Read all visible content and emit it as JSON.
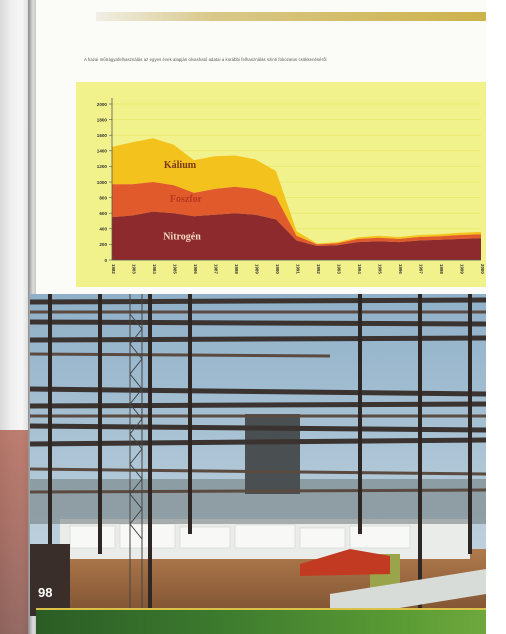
{
  "page": {
    "number": "98"
  },
  "caption": "A hazai műtrágyafelhasználás az egyes évek alapján olvasható adatai a korábbi felhasználás szinti fokozatos csökkenéséről",
  "chart_data": {
    "type": "area",
    "stacked": true,
    "title": "",
    "xlabel": "",
    "ylabel": "",
    "ylim": [
      0,
      2000
    ],
    "yticks": [
      0,
      200,
      400,
      600,
      800,
      1000,
      1200,
      1400,
      1600,
      1800,
      2000
    ],
    "grid": true,
    "x": [
      "1982",
      "1983",
      "1984",
      "1985",
      "1986",
      "1987",
      "1988",
      "1989",
      "1990",
      "1991",
      "1992",
      "1993",
      "1994",
      "1995",
      "1996",
      "1997",
      "1998",
      "1999",
      "2000"
    ],
    "series": [
      {
        "name": "Nitrogén",
        "color": "#8c2a2e",
        "values": [
          550,
          570,
          620,
          600,
          560,
          580,
          600,
          580,
          520,
          250,
          180,
          190,
          230,
          240,
          230,
          250,
          260,
          270,
          280
        ]
      },
      {
        "name": "Foszfor",
        "color": "#e05a2c",
        "values": [
          420,
          400,
          380,
          360,
          300,
          330,
          340,
          330,
          290,
          60,
          20,
          25,
          40,
          45,
          40,
          45,
          45,
          50,
          50
        ]
      },
      {
        "name": "Kálium",
        "color": "#f4c21c",
        "values": [
          480,
          540,
          560,
          520,
          420,
          420,
          400,
          380,
          330,
          60,
          10,
          15,
          20,
          25,
          25,
          25,
          25,
          30,
          30
        ]
      }
    ],
    "colors": {
      "background": "#f2f28c",
      "grid": "#e8e86a"
    }
  }
}
